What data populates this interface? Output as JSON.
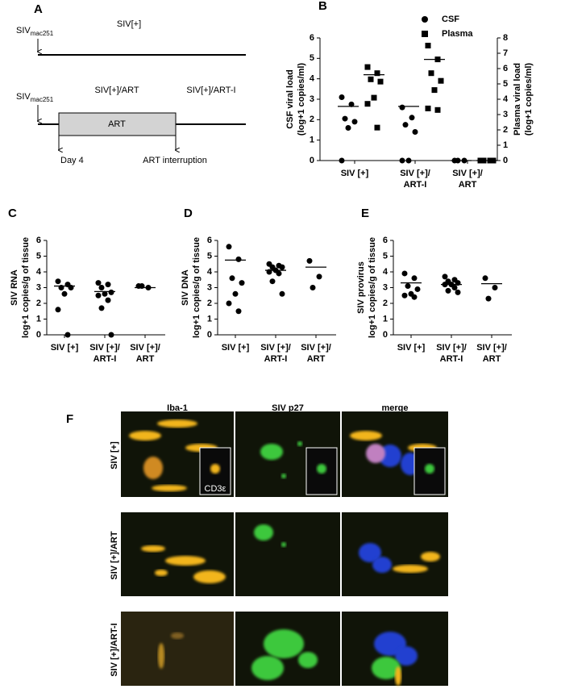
{
  "panel_a": {
    "panel": "A",
    "infection_label": {
      "main": "SIV",
      "sub": "mac251"
    },
    "group_1": "SIV[+]",
    "group_2": "SIV[+]/ART",
    "group_3": "SIV[+]/ART-I",
    "treatment": "ART",
    "start": "Day 4",
    "stop": "ART interruption"
  },
  "chart_data": [
    {
      "type": "dot",
      "panel": "B",
      "ylabel": [
        "CSF viral load",
        "(log+1 copies/ml)"
      ],
      "y2label": [
        "Plasma viral load",
        "(log+1 copies/ml)"
      ],
      "categories": [
        [
          "SIV [+]"
        ],
        [
          "SIV [+]/",
          "ART-I"
        ],
        [
          "SIV [+]/",
          "ART"
        ]
      ],
      "ylim": [
        0,
        6
      ],
      "yticks": [
        0,
        1,
        2,
        3,
        4,
        5,
        6
      ],
      "y2lim": [
        0,
        8
      ],
      "y2ticks": [
        0,
        1,
        2,
        3,
        4,
        5,
        6,
        7,
        8
      ],
      "series": [
        {
          "name": "CSF",
          "marker": "circle",
          "color": "#000000",
          "values": [
            [
              3.1,
              2.75,
              2.05,
              1.9,
              1.6,
              0
            ],
            [
              2.6,
              2.1,
              1.75,
              1.4,
              0,
              0
            ],
            [
              0,
              0,
              0
            ]
          ],
          "means": [
            2.65,
            2.65,
            0
          ]
        },
        {
          "name": "Plasma",
          "marker": "square",
          "color": "#000000",
          "axis": "y2",
          "values": [
            [
              6.1,
              5.7,
              5.3,
              5.15,
              4.1,
              3.7,
              2.15
            ],
            [
              7.5,
              6.6,
              5.7,
              5.2,
              4.6,
              3.4,
              3.3
            ],
            [
              0,
              0,
              0,
              0
            ]
          ],
          "means": [
            5.6,
            6.6,
            0
          ]
        }
      ]
    },
    {
      "type": "dot",
      "panel": "C",
      "ylabel": [
        "SIV RNA",
        "log+1 copies/g of tissue"
      ],
      "categories": [
        [
          "SIV [+]"
        ],
        [
          "SIV [+]/",
          "ART-I"
        ],
        [
          "SIV [+]/",
          "ART"
        ]
      ],
      "ylim": [
        0,
        6
      ],
      "yticks": [
        0,
        1,
        2,
        3,
        4,
        5,
        6
      ],
      "series": [
        {
          "marker": "circle",
          "color": "#000000",
          "values": [
            [
              3.4,
              3.2,
              3.0,
              3.0,
              2.6,
              1.6,
              0
            ],
            [
              3.3,
              3.2,
              3.0,
              2.7,
              2.6,
              2.5,
              2.2,
              1.7,
              0
            ],
            [
              3.1,
              3.0,
              3.1
            ]
          ],
          "means": [
            3.1,
            2.75,
            3.0
          ]
        }
      ]
    },
    {
      "type": "dot",
      "panel": "D",
      "ylabel": [
        "SIV DNA",
        "log+1 copies/g of tissue"
      ],
      "categories": [
        [
          "SIV [+]"
        ],
        [
          "SIV [+]/",
          "ART-I"
        ],
        [
          "SIV [+]/",
          "ART"
        ]
      ],
      "ylim": [
        0,
        6
      ],
      "yticks": [
        0,
        1,
        2,
        3,
        4,
        5,
        6
      ],
      "series": [
        {
          "marker": "circle",
          "color": "#000000",
          "values": [
            [
              5.6,
              4.8,
              3.6,
              3.3,
              2.6,
              2.0,
              1.5
            ],
            [
              4.5,
              4.4,
              4.3,
              4.3,
              4.1,
              4.0,
              3.9,
              3.4,
              2.6
            ],
            [
              4.7,
              3.7,
              3.0
            ]
          ],
          "means": [
            4.75,
            4.1,
            4.3
          ]
        }
      ]
    },
    {
      "type": "dot",
      "panel": "E",
      "ylabel": [
        "SIV provirus",
        "log+1 copies/g of tissue"
      ],
      "categories": [
        [
          "SIV [+]"
        ],
        [
          "SIV [+]/",
          "ART-I"
        ],
        [
          "SIV [+]/",
          "ART"
        ]
      ],
      "ylim": [
        0,
        6
      ],
      "yticks": [
        0,
        1,
        2,
        3,
        4,
        5,
        6
      ],
      "series": [
        {
          "marker": "circle",
          "color": "#000000",
          "values": [
            [
              3.9,
              3.6,
              3.1,
              2.9,
              2.6,
              2.5,
              2.4
            ],
            [
              3.7,
              3.5,
              3.4,
              3.3,
              3.2,
              3.2,
              3.0,
              2.8,
              2.7
            ],
            [
              3.6,
              3.0,
              2.3
            ]
          ],
          "means": [
            3.3,
            3.2,
            3.25
          ]
        }
      ]
    }
  ],
  "panel_f": {
    "panel": "F",
    "columns": [
      "Iba-1",
      "SIV p27",
      "merge"
    ],
    "rows": [
      "SIV [+]",
      "SIV [+]/ART",
      "SIV [+]/ART-I"
    ],
    "inset_label": "CD3ε"
  }
}
